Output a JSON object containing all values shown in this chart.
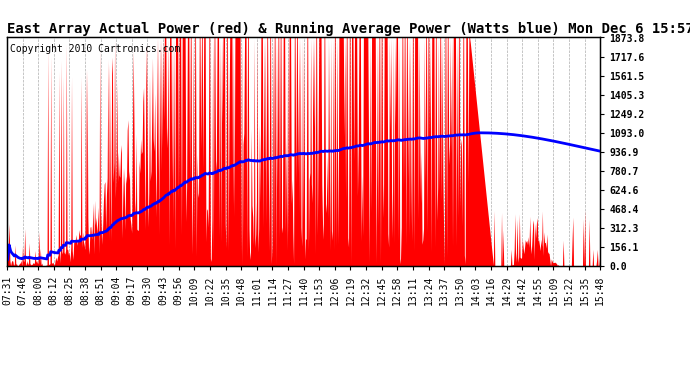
{
  "title": "East Array Actual Power (red) & Running Average Power (Watts blue) Mon Dec 6 15:57",
  "copyright": "Copyright 2010 Cartronics.com",
  "ylabel_right_ticks": [
    0.0,
    156.1,
    312.3,
    468.4,
    624.6,
    780.7,
    936.9,
    1093.0,
    1249.2,
    1405.3,
    1561.5,
    1717.6,
    1873.8
  ],
  "ymax": 1873.8,
  "ymin": 0.0,
  "fill_color": "#ff0000",
  "avg_color": "#0000ff",
  "background_color": "#ffffff",
  "grid_color": "#999999",
  "title_fontsize": 10,
  "copyright_fontsize": 7,
  "tick_fontsize": 7,
  "x_labels": [
    "07:31",
    "07:46",
    "08:00",
    "08:12",
    "08:25",
    "08:38",
    "08:51",
    "09:04",
    "09:17",
    "09:30",
    "09:43",
    "09:56",
    "10:09",
    "10:22",
    "10:35",
    "10:48",
    "11:01",
    "11:14",
    "11:27",
    "11:40",
    "11:53",
    "12:06",
    "12:19",
    "12:32",
    "12:45",
    "12:58",
    "13:11",
    "13:24",
    "13:37",
    "13:50",
    "14:03",
    "14:16",
    "14:29",
    "14:42",
    "14:55",
    "15:09",
    "15:22",
    "15:35",
    "15:48"
  ]
}
